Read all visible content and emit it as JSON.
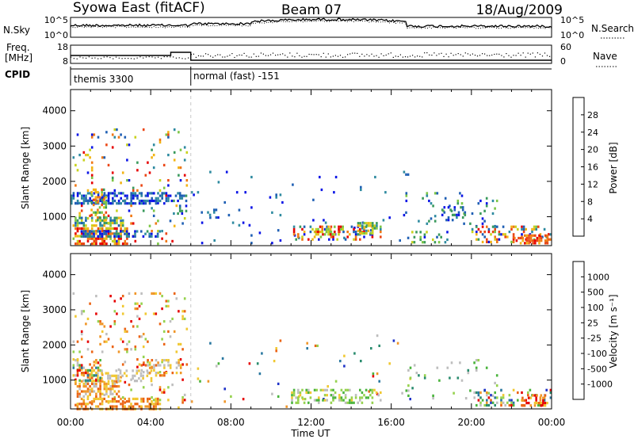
{
  "header": {
    "station": "Syowa East (fitACF)",
    "beam": "Beam 07",
    "date": "18/Aug/2009"
  },
  "top_panels": {
    "nsky_label": "N.Sky",
    "nsky_ticks": [
      "10^5",
      "10^0"
    ],
    "nsearch_label": "N.Search",
    "nsearch_ticks": [
      "10^5",
      "10^0"
    ],
    "freq_label": "Freq.",
    "freq_unit": "[MHz]",
    "freq_ticks": [
      "18",
      "8"
    ],
    "nave_label": "Nave",
    "nave_ticks": [
      "60",
      "0"
    ],
    "cpid_label": "CPID",
    "cpid_modes": [
      {
        "name": "themis 3300",
        "start_hour": 0,
        "end_hour": 6
      },
      {
        "name": "normal (fast) -151",
        "start_hour": 6,
        "end_hour": 24
      }
    ]
  },
  "chart_data": [
    {
      "type": "heatmap",
      "title": "",
      "xlabel": "Time UT",
      "ylabel": "Slant Range [km]",
      "xlim": [
        0,
        24
      ],
      "ylim": [
        180,
        4600
      ],
      "x_ticks": [
        "00:00",
        "04:00",
        "08:00",
        "12:00",
        "16:00",
        "20:00",
        "00:00"
      ],
      "y_ticks": [
        1000,
        2000,
        3000,
        4000
      ],
      "colorbar": {
        "label": "Power [dB]",
        "ticks": [
          "4",
          "8",
          "12",
          "16",
          "20",
          "24",
          "28"
        ],
        "colors": [
          "#0a14e6",
          "#1f5fb4",
          "#2e8aa0",
          "#3a9a5c",
          "#7cc646",
          "#c8d21e",
          "#f2b414",
          "#f07814",
          "#eb4614",
          "#e60000"
        ]
      },
      "regions": [
        {
          "t0": 0.1,
          "t1": 5.8,
          "r0": 200,
          "r1": 3500,
          "c": [
            0,
            9
          ],
          "d": 0.06
        },
        {
          "t0": 0.2,
          "t1": 2.8,
          "r0": 220,
          "r1": 700,
          "c": [
            5,
            9
          ],
          "d": 0.55
        },
        {
          "t0": 0.5,
          "t1": 4.5,
          "r0": 450,
          "r1": 620,
          "c": [
            0,
            3
          ],
          "d": 0.6
        },
        {
          "t0": 0.1,
          "t1": 2.6,
          "r0": 750,
          "r1": 1000,
          "c": [
            1,
            6
          ],
          "d": 0.55
        },
        {
          "t0": 0.0,
          "t1": 5.0,
          "r0": 1350,
          "r1": 1700,
          "c": [
            0,
            2
          ],
          "d": 0.55
        },
        {
          "t0": 1.0,
          "t1": 1.8,
          "r0": 900,
          "r1": 1800,
          "c": [
            3,
            8
          ],
          "d": 0.45
        },
        {
          "t0": 5.0,
          "t1": 5.8,
          "r0": 1100,
          "r1": 1700,
          "c": [
            0,
            3
          ],
          "d": 0.35
        },
        {
          "t0": 6.0,
          "t1": 17.0,
          "r0": 250,
          "r1": 2300,
          "c": [
            0,
            2
          ],
          "d": 0.02
        },
        {
          "t0": 6.5,
          "t1": 7.5,
          "r0": 900,
          "r1": 1300,
          "c": [
            0,
            2
          ],
          "d": 0.2
        },
        {
          "t0": 11.0,
          "t1": 15.5,
          "r0": 350,
          "r1": 750,
          "c": [
            0,
            9
          ],
          "d": 0.3
        },
        {
          "t0": 12.2,
          "t1": 13.6,
          "r0": 500,
          "r1": 750,
          "c": [
            4,
            9
          ],
          "d": 0.5
        },
        {
          "t0": 14.3,
          "t1": 15.3,
          "r0": 550,
          "r1": 850,
          "c": [
            2,
            6
          ],
          "d": 0.45
        },
        {
          "t0": 16.5,
          "t1": 21.5,
          "r0": 700,
          "r1": 1700,
          "c": [
            0,
            4
          ],
          "d": 0.05
        },
        {
          "t0": 17.0,
          "t1": 18.8,
          "r0": 300,
          "r1": 600,
          "c": [
            0,
            5
          ],
          "d": 0.25
        },
        {
          "t0": 18.5,
          "t1": 19.8,
          "r0": 900,
          "r1": 1300,
          "c": [
            0,
            3
          ],
          "d": 0.3
        },
        {
          "t0": 20.0,
          "t1": 24.0,
          "r0": 250,
          "r1": 750,
          "c": [
            0,
            9
          ],
          "d": 0.3
        },
        {
          "t0": 22.0,
          "t1": 23.8,
          "r0": 250,
          "r1": 500,
          "c": [
            6,
            9
          ],
          "d": 0.45
        }
      ]
    },
    {
      "type": "heatmap",
      "title": "",
      "xlabel": "Time UT",
      "ylabel": "Slant Range [km]",
      "xlim": [
        0,
        24
      ],
      "ylim": [
        180,
        4600
      ],
      "x_ticks": [
        "00:00",
        "04:00",
        "08:00",
        "12:00",
        "16:00",
        "20:00",
        "00:00"
      ],
      "y_ticks": [
        1000,
        2000,
        3000,
        4000
      ],
      "colorbar": {
        "label": "Velocity [m s⁻¹]",
        "ticks": [
          "1000",
          "500",
          "100",
          "25",
          "-25",
          "-100",
          "-500",
          "-1000"
        ],
        "colors": [
          "#1e32c8",
          "#2a78a0",
          "#2a8c6e",
          "#4ab43c",
          "#96d24e",
          "#bebebe",
          "#f0c832",
          "#f09628",
          "#eb6414",
          "#e60000"
        ]
      },
      "regions": [
        {
          "t0": 0.1,
          "t1": 5.8,
          "r0": 200,
          "r1": 3500,
          "c": [
            4,
            9
          ],
          "d": 0.07
        },
        {
          "t0": 0.3,
          "t1": 4.5,
          "r0": 200,
          "r1": 500,
          "c": [
            6,
            8
          ],
          "d": 0.55
        },
        {
          "t0": 0.2,
          "t1": 2.4,
          "r0": 550,
          "r1": 1000,
          "c": [
            5,
            8
          ],
          "d": 0.5
        },
        {
          "t0": 1.0,
          "t1": 4.0,
          "r0": 1000,
          "r1": 1300,
          "c": [
            5,
            6
          ],
          "d": 0.4
        },
        {
          "t0": 0.1,
          "t1": 1.5,
          "r0": 1000,
          "r1": 1600,
          "c": [
            1,
            9
          ],
          "d": 0.35
        },
        {
          "t0": 3.5,
          "t1": 5.5,
          "r0": 1100,
          "r1": 1600,
          "c": [
            5,
            8
          ],
          "d": 0.35
        },
        {
          "t0": 6.0,
          "t1": 17.0,
          "r0": 250,
          "r1": 2300,
          "c": [
            0,
            9
          ],
          "d": 0.02
        },
        {
          "t0": 11.0,
          "t1": 15.5,
          "r0": 350,
          "r1": 750,
          "c": [
            3,
            6
          ],
          "d": 0.35
        },
        {
          "t0": 16.5,
          "t1": 21.5,
          "r0": 500,
          "r1": 1600,
          "c": [
            2,
            5
          ],
          "d": 0.06
        },
        {
          "t0": 20.0,
          "t1": 24.0,
          "r0": 250,
          "r1": 750,
          "c": [
            0,
            9
          ],
          "d": 0.3
        },
        {
          "t0": 22.5,
          "t1": 23.8,
          "r0": 250,
          "r1": 600,
          "c": [
            6,
            9
          ],
          "d": 0.45
        }
      ]
    }
  ]
}
